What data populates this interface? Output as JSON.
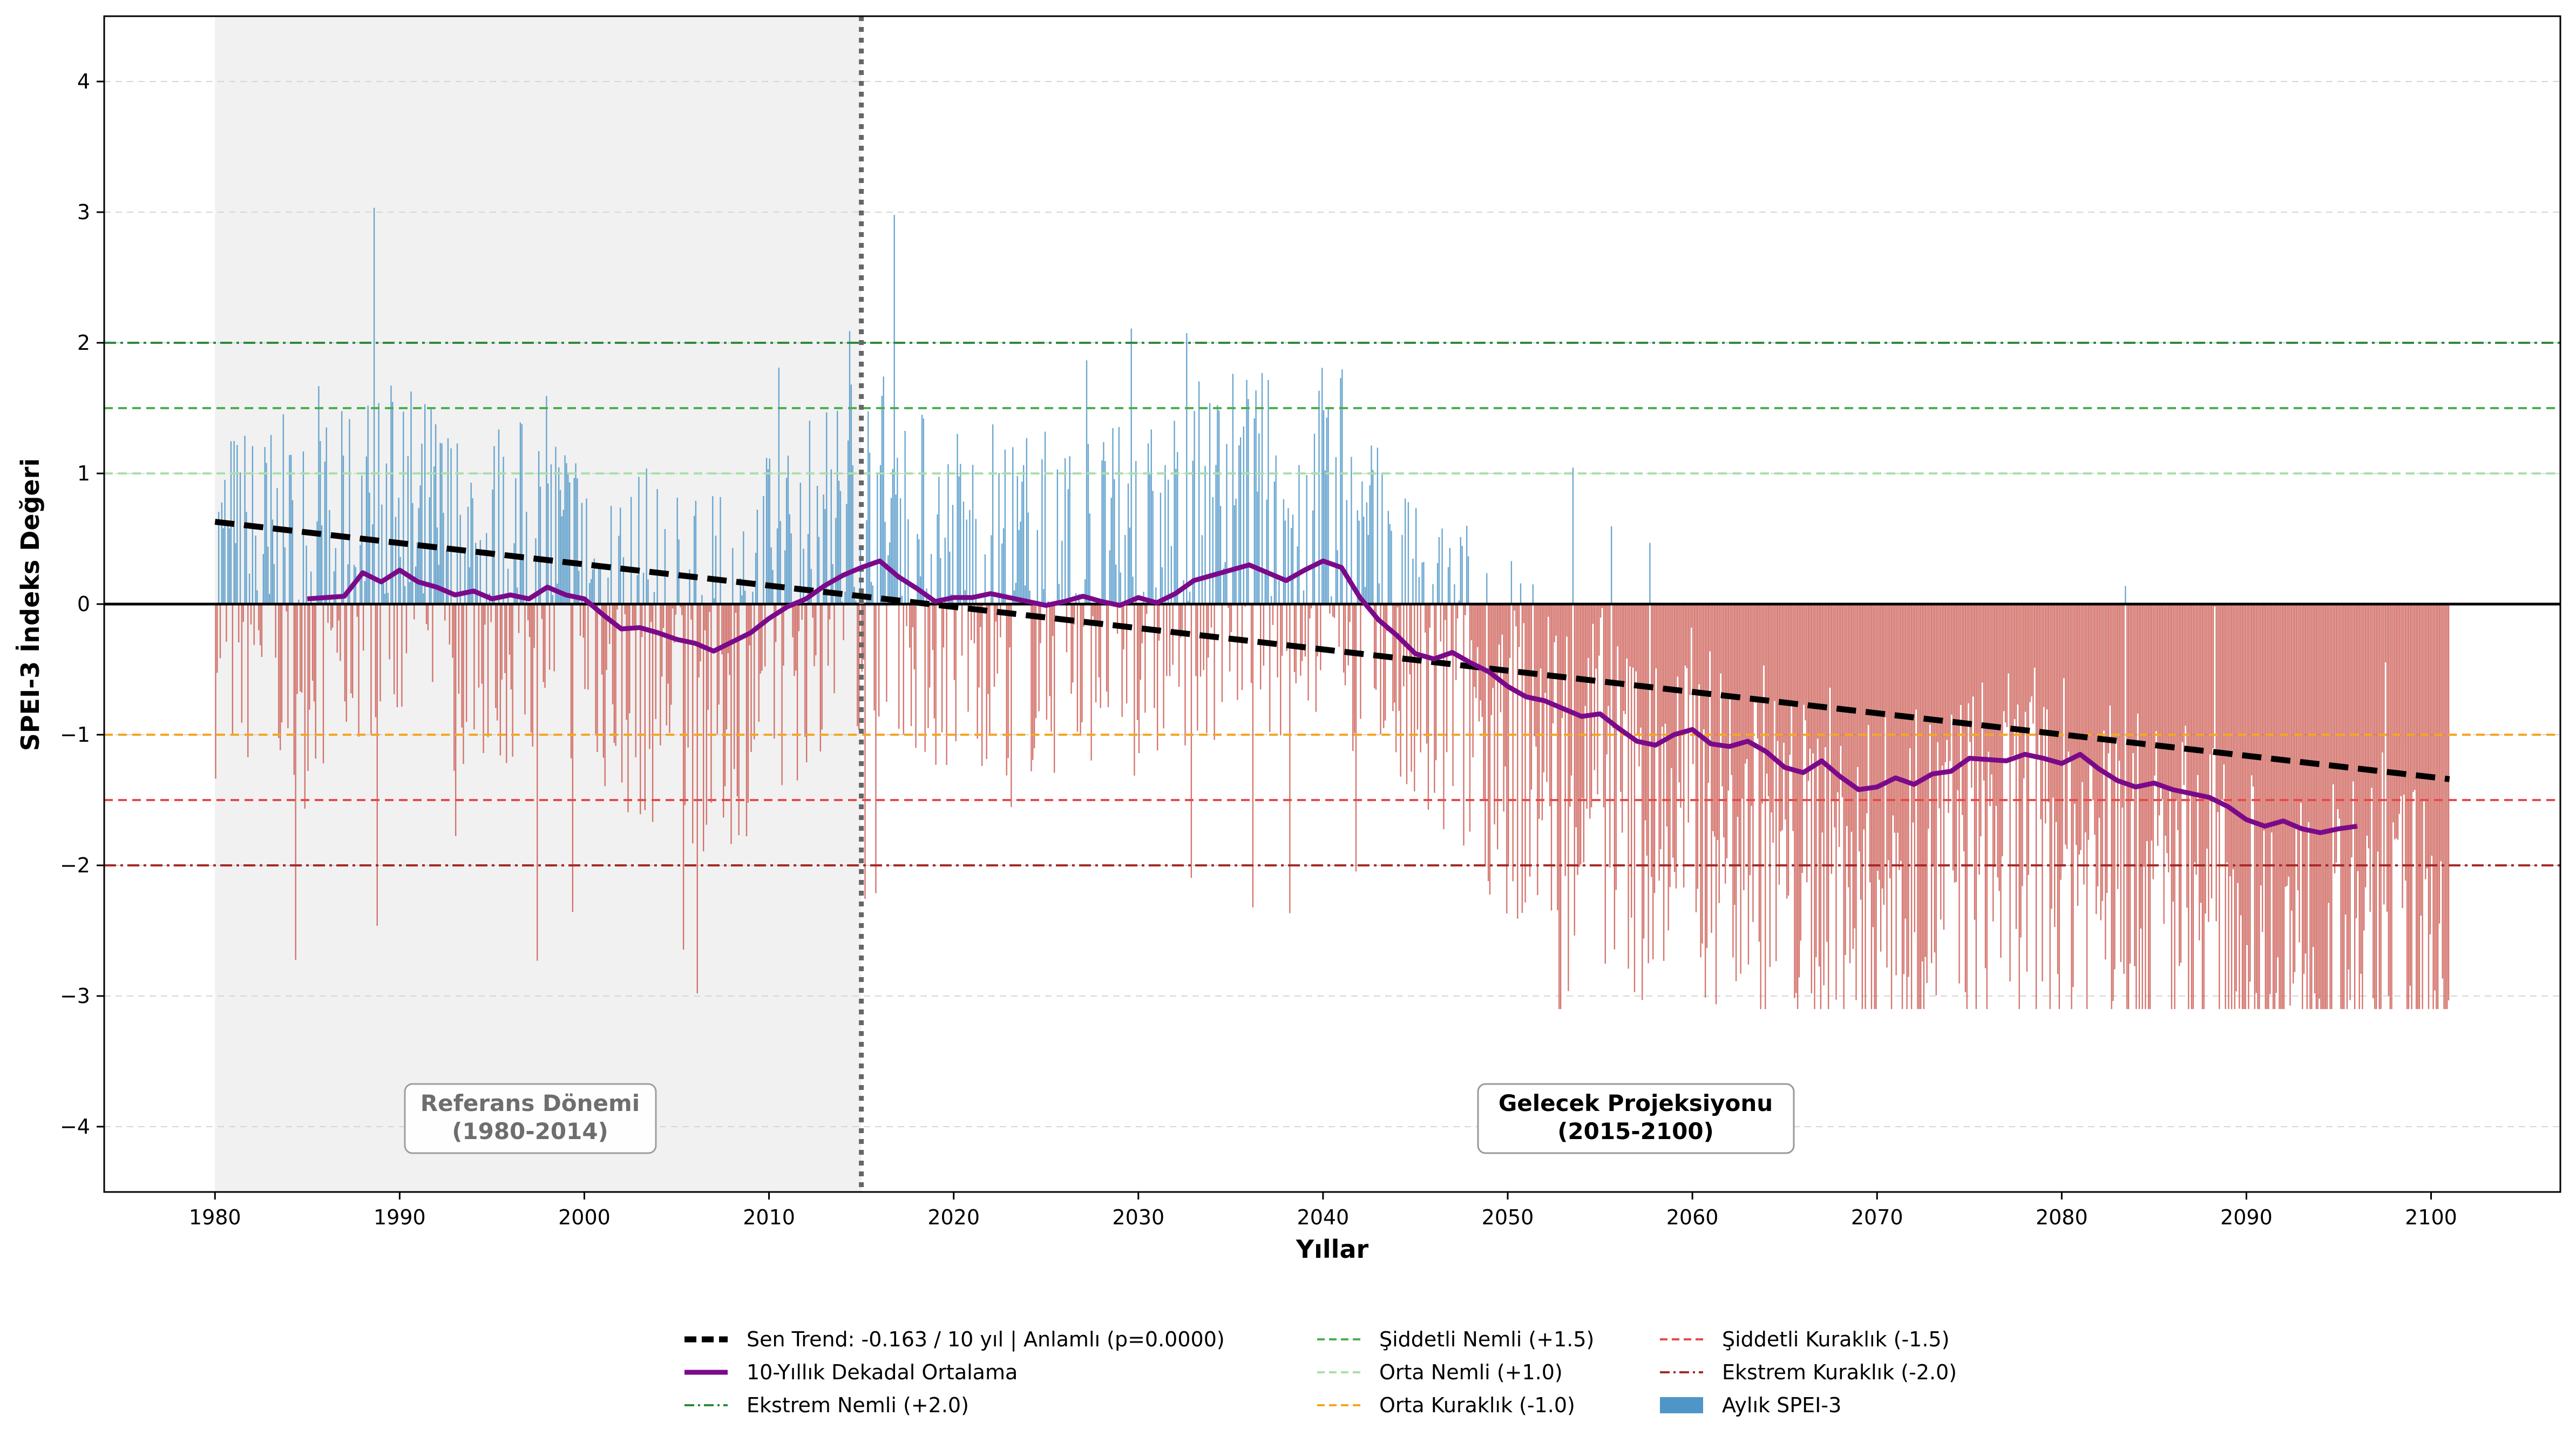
{
  "chart_data": {
    "type": "bar",
    "ylabel": "SPEI-3 İndeks Değeri",
    "xlabel": "Yıllar",
    "xlim": [
      1974,
      2107
    ],
    "ylim": [
      -4.5,
      4.5
    ],
    "xticks": [
      1980,
      1990,
      2000,
      2010,
      2020,
      2030,
      2040,
      2050,
      2060,
      2070,
      2080,
      2090,
      2100
    ],
    "xtick_labels": [
      "1980",
      "1990",
      "2000",
      "2010",
      "2020",
      "2030",
      "2040",
      "2050",
      "2060",
      "2070",
      "2080",
      "2090",
      "2100"
    ],
    "yticks": [
      -4,
      -3,
      -2,
      -1,
      0,
      1,
      2,
      3,
      4
    ],
    "ytick_labels": [
      "−4",
      "−3",
      "−2",
      "−1",
      "0",
      "1",
      "2",
      "3",
      "4"
    ],
    "grid": "y-dashed",
    "reference_period": {
      "start": 1980,
      "end": 2015,
      "label_line1": "Referans Dönemi",
      "label_line2": "(1980-2014)"
    },
    "future_period": {
      "divider": 2015,
      "label_line1": "Gelecek Projeksiyonu",
      "label_line2": "(2015-2100)"
    },
    "monthly_range": {
      "start": 1980,
      "end": 2101
    },
    "thresholds": [
      {
        "name": "Ekstrem Nemli (+2.0)",
        "value": 2.0,
        "color": "#2e8b3c",
        "style": "dashdot"
      },
      {
        "name": "Şiddetli Nemli (+1.5)",
        "value": 1.5,
        "color": "#4caf50",
        "style": "dashed"
      },
      {
        "name": "Orta Nemli (+1.0)",
        "value": 1.0,
        "color": "#a8e0a8",
        "style": "dashed"
      },
      {
        "name": "Orta Kuraklık (-1.0)",
        "value": -1.0,
        "color": "#f5a623",
        "style": "dashed"
      },
      {
        "name": "Şiddetli Kuraklık (-1.5)",
        "value": -1.5,
        "color": "#e84a4a",
        "style": "dashed"
      },
      {
        "name": "Ekstrem Kuraklık (-2.0)",
        "value": -2.0,
        "color": "#a52a2a",
        "style": "dashdot"
      }
    ],
    "trend": {
      "name": "Sen Trend: -0.163 / 10 yıl | Anlamlı (p=0.0000)",
      "x": [
        1980,
        2101
      ],
      "y": [
        0.63,
        -1.34
      ],
      "color": "#000000"
    },
    "decadal_mean": {
      "name": "10-Yıllık Dekadal Ortalama",
      "color": "#7b0a8a",
      "x": [
        1985,
        1986,
        1987,
        1988,
        1989,
        1990,
        1991,
        1992,
        1993,
        1994,
        1995,
        1996,
        1997,
        1998,
        1999,
        2000,
        2001,
        2002,
        2003,
        2004,
        2005,
        2006,
        2007,
        2008,
        2009,
        2010,
        2011,
        2012,
        2013,
        2014,
        2015,
        2016,
        2017,
        2018,
        2019,
        2020,
        2021,
        2022,
        2023,
        2024,
        2025,
        2026,
        2027,
        2028,
        2029,
        2030,
        2031,
        2032,
        2033,
        2034,
        2035,
        2036,
        2037,
        2038,
        2039,
        2040,
        2041,
        2042,
        2043,
        2044,
        2045,
        2046,
        2047,
        2048,
        2049,
        2050,
        2051,
        2052,
        2053,
        2054,
        2055,
        2056,
        2057,
        2058,
        2059,
        2060,
        2061,
        2062,
        2063,
        2064,
        2065,
        2066,
        2067,
        2068,
        2069,
        2070,
        2071,
        2072,
        2073,
        2074,
        2075,
        2076,
        2077,
        2078,
        2079,
        2080,
        2081,
        2082,
        2083,
        2084,
        2085,
        2086,
        2087,
        2088,
        2089,
        2090,
        2091,
        2092,
        2093,
        2094,
        2095,
        2096
      ],
      "y": [
        0.04,
        0.05,
        0.06,
        0.24,
        0.17,
        0.26,
        0.17,
        0.13,
        0.07,
        0.1,
        0.04,
        0.07,
        0.04,
        0.13,
        0.07,
        0.04,
        -0.08,
        -0.19,
        -0.18,
        -0.22,
        -0.27,
        -0.3,
        -0.36,
        -0.29,
        -0.22,
        -0.11,
        -0.02,
        0.04,
        0.14,
        0.22,
        0.28,
        0.33,
        0.21,
        0.12,
        0.02,
        0.05,
        0.05,
        0.08,
        0.05,
        0.02,
        -0.01,
        0.02,
        0.06,
        0.02,
        -0.01,
        0.05,
        0.01,
        0.08,
        0.18,
        0.22,
        0.26,
        0.3,
        0.24,
        0.18,
        0.26,
        0.33,
        0.28,
        0.05,
        -0.12,
        -0.24,
        -0.38,
        -0.42,
        -0.37,
        -0.45,
        -0.52,
        -0.63,
        -0.71,
        -0.74,
        -0.8,
        -0.86,
        -0.84,
        -0.95,
        -1.05,
        -1.08,
        -1.0,
        -0.96,
        -1.07,
        -1.09,
        -1.05,
        -1.13,
        -1.25,
        -1.29,
        -1.2,
        -1.32,
        -1.42,
        -1.4,
        -1.33,
        -1.38,
        -1.3,
        -1.28,
        -1.18,
        -1.19,
        -1.2,
        -1.15,
        -1.18,
        -1.22,
        -1.15,
        -1.26,
        -1.35,
        -1.4,
        -1.37,
        -1.42,
        -1.45,
        -1.48,
        -1.55,
        -1.65,
        -1.7,
        -1.66,
        -1.72,
        -1.75,
        -1.72,
        -1.7
      ]
    },
    "monthly_legend_name": "Aylık SPEI-3",
    "bar_colors": {
      "positive": "#4f96c8",
      "negative": "#cd5c53"
    }
  }
}
